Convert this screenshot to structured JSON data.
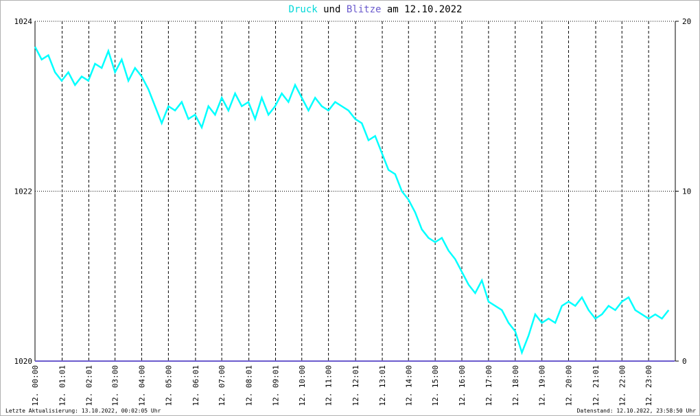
{
  "chart_data": {
    "type": "line",
    "title_joiner": "und",
    "title_suffix": "am 12.10.2022",
    "footer_left": "Letzte Aktualisierung: 13.10.2022, 00:02:05 Uhr",
    "footer_right": "Datenstand: 12.10.2022, 23:58:50 Uhr",
    "xlim": [
      0,
      1440
    ],
    "xticks": [
      {
        "value": 0,
        "label": "12. 00:00"
      },
      {
        "value": 61,
        "label": "12. 01:01"
      },
      {
        "value": 121,
        "label": "12. 02:01"
      },
      {
        "value": 180,
        "label": "12. 03:00"
      },
      {
        "value": 240,
        "label": "12. 04:00"
      },
      {
        "value": 300,
        "label": "12. 05:00"
      },
      {
        "value": 361,
        "label": "12. 06:01"
      },
      {
        "value": 420,
        "label": "12. 07:00"
      },
      {
        "value": 481,
        "label": "12. 08:01"
      },
      {
        "value": 541,
        "label": "12. 09:01"
      },
      {
        "value": 600,
        "label": "12. 10:00"
      },
      {
        "value": 660,
        "label": "12. 11:00"
      },
      {
        "value": 721,
        "label": "12. 12:01"
      },
      {
        "value": 781,
        "label": "12. 13:01"
      },
      {
        "value": 840,
        "label": "12. 14:00"
      },
      {
        "value": 900,
        "label": "12. 15:00"
      },
      {
        "value": 960,
        "label": "12. 16:00"
      },
      {
        "value": 1020,
        "label": "12. 17:00"
      },
      {
        "value": 1080,
        "label": "12. 18:00"
      },
      {
        "value": 1140,
        "label": "12. 19:00"
      },
      {
        "value": 1200,
        "label": "12. 20:00"
      },
      {
        "value": 1261,
        "label": "12. 21:01"
      },
      {
        "value": 1320,
        "label": "12. 22:00"
      },
      {
        "value": 1380,
        "label": "12. 23:00"
      }
    ],
    "ylim": [
      1020,
      1024
    ],
    "yticks": [
      1020,
      1022,
      1024
    ],
    "y2lim": [
      0,
      20
    ],
    "y2ticks": [
      0,
      10,
      20
    ],
    "grid": true,
    "series": [
      {
        "name": "Druck",
        "color": "#00ffff",
        "x": [
          0,
          15,
          30,
          45,
          60,
          75,
          90,
          105,
          120,
          135,
          150,
          165,
          180,
          195,
          210,
          225,
          240,
          255,
          270,
          285,
          300,
          315,
          330,
          345,
          360,
          375,
          390,
          405,
          420,
          435,
          450,
          465,
          480,
          495,
          510,
          525,
          540,
          555,
          570,
          585,
          600,
          615,
          630,
          645,
          660,
          675,
          690,
          705,
          720,
          735,
          750,
          765,
          780,
          795,
          810,
          825,
          840,
          855,
          870,
          885,
          900,
          915,
          930,
          945,
          960,
          975,
          990,
          1005,
          1020,
          1035,
          1050,
          1065,
          1080,
          1095,
          1110,
          1125,
          1140,
          1155,
          1170,
          1185,
          1200,
          1215,
          1230,
          1245,
          1260,
          1275,
          1290,
          1305,
          1320,
          1335,
          1350,
          1365,
          1380,
          1395,
          1410,
          1425
        ],
        "values": [
          1023.7,
          1023.55,
          1023.6,
          1023.4,
          1023.3,
          1023.4,
          1023.25,
          1023.35,
          1023.3,
          1023.5,
          1023.45,
          1023.65,
          1023.4,
          1023.55,
          1023.3,
          1023.45,
          1023.35,
          1023.2,
          1023.0,
          1022.8,
          1023.0,
          1022.95,
          1023.05,
          1022.85,
          1022.9,
          1022.75,
          1023.0,
          1022.9,
          1023.1,
          1022.95,
          1023.15,
          1023.0,
          1023.05,
          1022.85,
          1023.1,
          1022.9,
          1023.0,
          1023.15,
          1023.05,
          1023.25,
          1023.1,
          1022.95,
          1023.1,
          1023.0,
          1022.95,
          1023.05,
          1023.0,
          1022.95,
          1022.85,
          1022.8,
          1022.6,
          1022.65,
          1022.45,
          1022.25,
          1022.2,
          1022.0,
          1021.9,
          1021.75,
          1021.55,
          1021.45,
          1021.4,
          1021.45,
          1021.3,
          1021.2,
          1021.05,
          1020.9,
          1020.8,
          1020.95,
          1020.7,
          1020.65,
          1020.6,
          1020.45,
          1020.35,
          1020.1,
          1020.3,
          1020.55,
          1020.45,
          1020.5,
          1020.45,
          1020.65,
          1020.7,
          1020.65,
          1020.75,
          1020.6,
          1020.5,
          1020.55,
          1020.65,
          1020.6,
          1020.7,
          1020.75,
          1020.6,
          1020.55,
          1020.5,
          1020.55,
          1020.5,
          1020.6
        ]
      },
      {
        "name": "Blitze",
        "color": "#6a5acd",
        "axis": "y2",
        "x": [
          0,
          1439
        ],
        "values": [
          0,
          0
        ]
      }
    ]
  }
}
